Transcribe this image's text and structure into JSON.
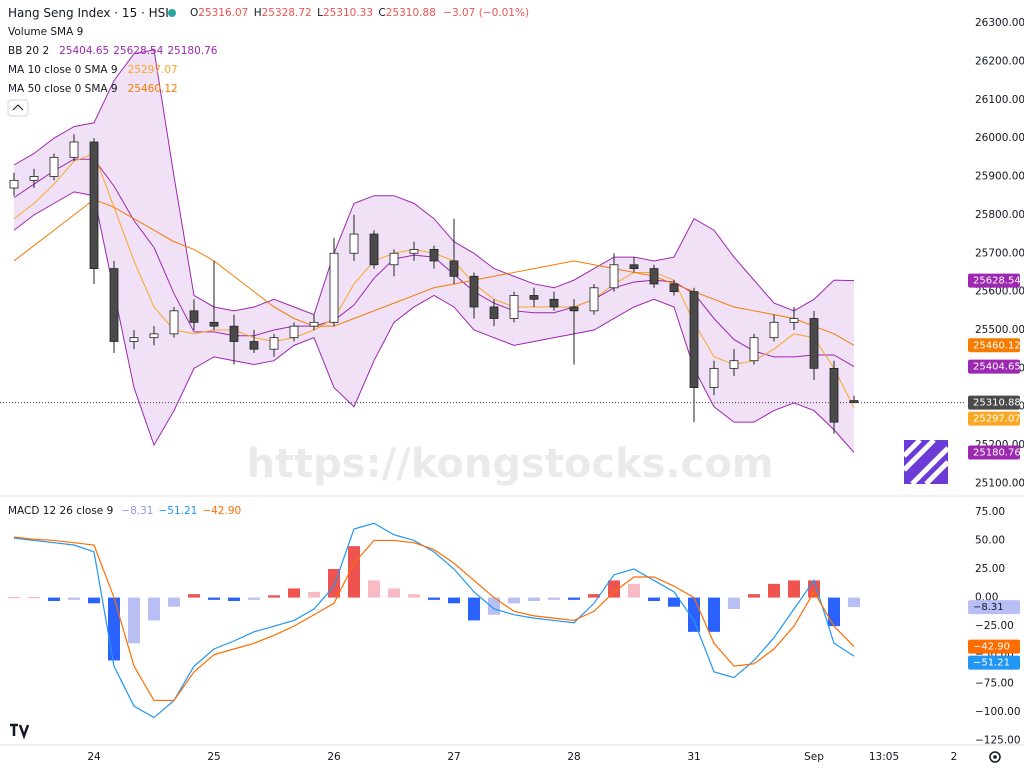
{
  "header": {
    "title": "Hang Seng Index · 15 · HSI",
    "ohlc_labels": [
      "O",
      "H",
      "L",
      "C"
    ],
    "change": "−3.07 (−0.01%)"
  },
  "indicators": {
    "volume": "Volume SMA 9",
    "bb": "BB 20 2",
    "ma10": "MA 10 close 0 SMA 9",
    "ma50": "MA 50 close 0 SMA 9",
    "macd": "MACD 12 26 close 9"
  },
  "watermark": "https://kongstocks.com",
  "chart_data": [
    {
      "type": "candlestick",
      "categories": [
        null,
        null,
        null,
        null,
        "24",
        null,
        null,
        null,
        null,
        null,
        "25",
        null,
        null,
        null,
        null,
        null,
        "26",
        null,
        null,
        null,
        null,
        null,
        "27",
        null,
        null,
        null,
        null,
        null,
        "28",
        null,
        null,
        null,
        null,
        null,
        "31",
        null,
        null,
        null,
        null,
        null,
        "Sep",
        null,
        null
      ],
      "future_labels": [
        "13:05",
        "2"
      ],
      "open": [
        25870,
        25890,
        25900,
        25950,
        25990,
        25660,
        25470,
        25480,
        25490,
        25550,
        25520,
        25510,
        25470,
        25450,
        25480,
        25510,
        25520,
        25700,
        25750,
        25670,
        25700,
        25710,
        25680,
        25640,
        25560,
        25530,
        25590,
        25580,
        25560,
        25550,
        25610,
        25670,
        25660,
        25620,
        25600,
        25350,
        25400,
        25420,
        25480,
        25520,
        25530,
        25400,
        25316.07
      ],
      "high": [
        25910,
        25920,
        25960,
        26010,
        26000,
        25680,
        25500,
        25510,
        25560,
        25580,
        25680,
        25540,
        25500,
        25490,
        25520,
        25540,
        25740,
        25800,
        25760,
        25710,
        25730,
        25720,
        25790,
        25650,
        25580,
        25600,
        25610,
        25600,
        25580,
        25620,
        25700,
        25690,
        25670,
        25630,
        25610,
        25420,
        25450,
        25490,
        25540,
        25560,
        25550,
        25420,
        25328.72
      ],
      "low": [
        25850,
        25870,
        25890,
        25940,
        25620,
        25440,
        25450,
        25460,
        25480,
        25500,
        25500,
        25410,
        25440,
        25430,
        25470,
        25500,
        25510,
        25680,
        25660,
        25640,
        25680,
        25660,
        25620,
        25530,
        25510,
        25520,
        25560,
        25550,
        25410,
        25540,
        25600,
        25650,
        25610,
        25590,
        25260,
        25330,
        25380,
        25410,
        25470,
        25500,
        25370,
        25230,
        25310.33
      ],
      "close": [
        25890,
        25900,
        25950,
        25990,
        25660,
        25470,
        25480,
        25490,
        25550,
        25520,
        25510,
        25470,
        25450,
        25480,
        25510,
        25520,
        25700,
        25750,
        25670,
        25700,
        25710,
        25680,
        25640,
        25560,
        25530,
        25590,
        25580,
        25560,
        25550,
        25610,
        25670,
        25660,
        25620,
        25600,
        25350,
        25400,
        25420,
        25480,
        25520,
        25530,
        25400,
        25260,
        25310.88
      ],
      "up_color": "#ffffff",
      "down_color": "#4a4a4a",
      "wick_color": "#222222",
      "band_fill": "#e6c9ee",
      "series": [
        {
          "color": "#9c27b0",
          "values": [
            25845,
            25880,
            25915,
            25945,
            25945,
            25875,
            25785,
            25715,
            25595,
            25495,
            25495,
            25485,
            25485,
            25500,
            25510,
            25510,
            25525,
            25565,
            25635,
            25685,
            25695,
            25690,
            25645,
            25600,
            25570,
            25550,
            25545,
            25545,
            25560,
            25580,
            25610,
            25625,
            25630,
            25625,
            25595,
            25530,
            25475,
            25445,
            25430,
            25430,
            25435,
            25435,
            25404.65
          ]
        },
        {
          "color": "#9c27b0",
          "values": [
            25930,
            25960,
            26000,
            26030,
            26040,
            26150,
            26220,
            26230,
            25900,
            25590,
            25560,
            25550,
            25560,
            25580,
            25560,
            25540,
            25700,
            25830,
            25850,
            25850,
            25830,
            25790,
            25730,
            25700,
            25660,
            25640,
            25620,
            25610,
            25630,
            25660,
            25690,
            25690,
            25680,
            25690,
            25790,
            25760,
            25690,
            25630,
            25570,
            25550,
            25580,
            25630,
            25628.54
          ]
        },
        {
          "color": "#9c27b0",
          "values": [
            25760,
            25800,
            25830,
            25860,
            25850,
            25600,
            25350,
            25200,
            25290,
            25400,
            25430,
            25420,
            25410,
            25420,
            25460,
            25480,
            25350,
            25300,
            25420,
            25520,
            25560,
            25590,
            25560,
            25500,
            25480,
            25460,
            25470,
            25480,
            25490,
            25500,
            25530,
            25560,
            25580,
            25560,
            25400,
            25300,
            25260,
            25260,
            25290,
            25310,
            25290,
            25240,
            25180.76
          ]
        },
        {
          "color": "#f9a825",
          "values": [
            25790,
            25830,
            25880,
            25940,
            25960,
            25820,
            25680,
            25560,
            25500,
            25490,
            25500,
            25500,
            25480,
            25470,
            25480,
            25500,
            25530,
            25620,
            25680,
            25700,
            25710,
            25700,
            25680,
            25620,
            25580,
            25560,
            25560,
            25560,
            25560,
            25580,
            25620,
            25650,
            25650,
            25630,
            25520,
            25430,
            25410,
            25420,
            25450,
            25490,
            25480,
            25400,
            25297.07
          ]
        },
        {
          "color": "#f57c00",
          "values": [
            25680,
            25720,
            25760,
            25800,
            25840,
            25820,
            25790,
            25760,
            25730,
            25710,
            25680,
            25640,
            25600,
            25560,
            25530,
            25510,
            25510,
            25530,
            25550,
            25570,
            25590,
            25610,
            25620,
            25630,
            25640,
            25650,
            25660,
            25670,
            25680,
            25670,
            25660,
            25650,
            25640,
            25620,
            25600,
            25580,
            25560,
            25550,
            25540,
            25530,
            25510,
            25490,
            25460.12
          ]
        }
      ],
      "ylim": [
        25070,
        26360
      ],
      "yticks": [
        {
          "value": 26300,
          "label": "26300.00"
        },
        {
          "value": 26200,
          "label": "26200.00"
        },
        {
          "value": 26100,
          "label": "26100.00"
        },
        {
          "value": 26000,
          "label": "26000.00"
        },
        {
          "value": 25900,
          "label": "25900.00"
        },
        {
          "value": 25800,
          "label": "25800.00"
        },
        {
          "value": 25700,
          "label": "25700.00"
        },
        {
          "value": 25600,
          "label": "25600.00"
        },
        {
          "value": 25500,
          "label": "25500.00"
        },
        {
          "value": 25400,
          "label": "25400.00"
        },
        {
          "value": 25300,
          "label": "25300.00"
        },
        {
          "value": 25200,
          "label": "25200.00"
        },
        {
          "value": 25100,
          "label": "25100.00"
        }
      ],
      "grid": false
    },
    {
      "type": "macd",
      "series": [
        {
          "type": "bar",
          "pos_colors": [
            "#ef5350",
            "#f8bbc4"
          ],
          "neg_colors": [
            "#2962ff",
            "#b7bff5"
          ],
          "color": "#b7bff5",
          "values": [
            0,
            0,
            -3,
            -2,
            -5,
            -55,
            -40,
            -20,
            -8,
            3,
            -2,
            -3,
            -2,
            2,
            8,
            5,
            25,
            45,
            15,
            8,
            3,
            -2,
            -5,
            -20,
            -15,
            -5,
            -3,
            -2,
            -2,
            3,
            15,
            12,
            -3,
            -8,
            -30,
            -30,
            -10,
            3,
            12,
            15,
            15,
            -25,
            -8.31
          ],
          "value_labels": [
            null,
            null,
            null,
            null,
            null,
            null,
            null,
            null,
            null,
            null,
            null,
            null,
            null,
            null,
            null,
            null,
            null,
            null,
            null,
            null,
            null,
            null,
            null,
            null,
            null,
            null,
            null,
            null,
            null,
            null,
            null,
            null,
            null,
            null,
            null,
            null,
            null,
            null,
            null,
            null,
            null,
            null,
            "−8.31"
          ]
        },
        {
          "type": "line",
          "color": "#2196f3",
          "values": [
            52,
            50,
            48,
            46,
            40,
            -60,
            -95,
            -105,
            -90,
            -60,
            -45,
            -38,
            -30,
            -25,
            -20,
            -10,
            10,
            60,
            65,
            55,
            50,
            40,
            25,
            5,
            -10,
            -15,
            -18,
            -20,
            -22,
            -5,
            20,
            25,
            15,
            5,
            -20,
            -65,
            -70,
            -55,
            -35,
            -10,
            15,
            -40,
            -51.21
          ],
          "value_labels": [
            null,
            null,
            null,
            null,
            null,
            null,
            null,
            null,
            null,
            null,
            null,
            null,
            null,
            null,
            null,
            null,
            null,
            null,
            null,
            null,
            null,
            null,
            null,
            null,
            null,
            null,
            null,
            null,
            null,
            null,
            null,
            null,
            null,
            null,
            null,
            null,
            null,
            null,
            null,
            null,
            null,
            null,
            "−51.21"
          ]
        },
        {
          "type": "line",
          "color": "#ff6d00",
          "values": [
            53,
            51,
            50,
            48,
            46,
            0,
            -60,
            -90,
            -90,
            -65,
            -50,
            -45,
            -40,
            -33,
            -25,
            -15,
            -5,
            30,
            50,
            50,
            48,
            42,
            30,
            15,
            0,
            -12,
            -16,
            -18,
            -20,
            -12,
            5,
            18,
            18,
            10,
            0,
            -40,
            -60,
            -58,
            -45,
            -25,
            5,
            -25,
            -42.9
          ],
          "value_labels": [
            null,
            null,
            null,
            null,
            null,
            null,
            null,
            null,
            null,
            null,
            null,
            null,
            null,
            null,
            null,
            null,
            null,
            null,
            null,
            null,
            null,
            null,
            null,
            null,
            null,
            null,
            null,
            null,
            null,
            null,
            null,
            null,
            null,
            null,
            null,
            null,
            null,
            null,
            null,
            null,
            null,
            null,
            "−42.90"
          ]
        }
      ],
      "ylim": [
        -129,
        88
      ],
      "yticks": [
        {
          "value": 75,
          "label": "75.00"
        },
        {
          "value": 50,
          "label": "50.00"
        },
        {
          "value": 25,
          "label": "25.00"
        },
        {
          "value": 0,
          "label": "0.00"
        },
        {
          "value": -25,
          "label": "−25.00"
        },
        {
          "value": -50,
          "label": "−50.00"
        },
        {
          "value": -75,
          "label": "−75.00"
        },
        {
          "value": -100,
          "label": "−100.00"
        },
        {
          "value": -125,
          "label": "−125.00"
        }
      ],
      "grid": false
    }
  ]
}
